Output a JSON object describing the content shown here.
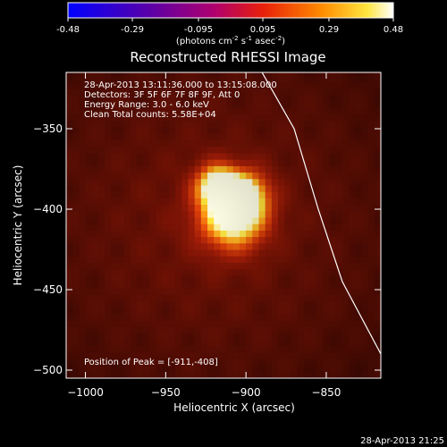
{
  "chart_data": {
    "type": "heatmap",
    "title": "Reconstructed RHESSI Image",
    "xlabel": "Heliocentric X (arcsec)",
    "ylabel": "Heliocentric Y (arcsec)",
    "xlim": [
      -1012,
      -816
    ],
    "ylim": [
      -505,
      -315
    ],
    "x_ticks": [
      -1000,
      -950,
      -900,
      -850
    ],
    "y_ticks": [
      -350,
      -400,
      -450,
      -500
    ],
    "colorbar": {
      "range": [
        -0.48,
        0.48
      ],
      "ticks": [
        -0.48,
        -0.29,
        -0.095,
        0.095,
        0.29,
        0.48
      ],
      "tick_labels": [
        "-0.48",
        "-0.29",
        "-0.095",
        "0.095",
        "0.29",
        "0.48"
      ],
      "label": "(photons cm",
      "label_exp1": "-2",
      "label_mid": " s",
      "label_exp2": "-1",
      "label_end": " asec",
      "label_exp3": "-2",
      "label_close": ")"
    },
    "annotations": [
      "28-Apr-2013 13:11:36.000 to 13:15:08.000",
      "Detectors: 3F 5F 6F 7F 8F 9F, Att 0",
      "Energy Range: 3.0 - 6.0 keV",
      "Clean    Total counts: 5.58E+04"
    ],
    "peak_label": "Position of Peak = [-911,-408]",
    "peak": [
      -911,
      -408
    ],
    "limb_line": [
      [
        -890,
        -315
      ],
      [
        -870,
        -350
      ],
      [
        -855,
        -400
      ],
      [
        -840,
        -445
      ],
      [
        -816,
        -490
      ]
    ],
    "source_blobs": [
      {
        "x": -908,
        "y": -404,
        "peak": 1.0,
        "sigma": 14
      },
      {
        "x": -918,
        "y": -385,
        "peak": 0.85,
        "sigma": 9
      },
      {
        "x": -900,
        "y": -390,
        "peak": 0.6,
        "sigma": 10
      }
    ],
    "background_level": 0.22,
    "timestamp": "28-Apr-2013 21:25"
  }
}
